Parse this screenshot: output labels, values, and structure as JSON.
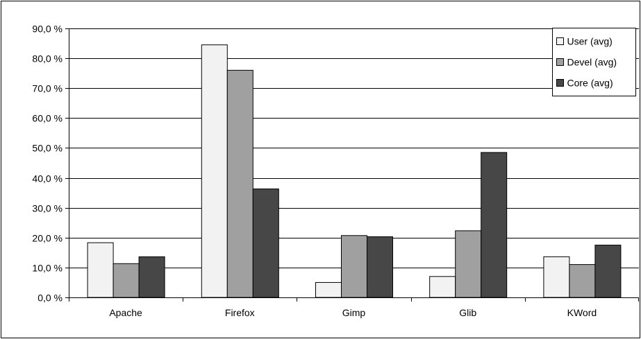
{
  "chart_data": {
    "type": "bar",
    "categories": [
      "Apache",
      "Firefox",
      "Gimp",
      "Glib",
      "KWord"
    ],
    "series": [
      {
        "name": "User (avg)",
        "values": [
          18.3,
          84.5,
          5.0,
          7.0,
          13.6
        ],
        "color": "#f2f2f2"
      },
      {
        "name": "Devel (avg)",
        "values": [
          11.3,
          76.0,
          20.7,
          22.3,
          11.0
        ],
        "color": "#a0a0a0"
      },
      {
        "name": "Core (avg)",
        "values": [
          13.6,
          36.3,
          20.3,
          48.5,
          17.5
        ],
        "color": "#474747"
      }
    ],
    "ylim": [
      0,
      90
    ],
    "yticks": [
      "0,0 %",
      "10,0 %",
      "20,0 %",
      "30,0 %",
      "40,0 %",
      "50,0 %",
      "60,0 %",
      "70,0 %",
      "80,0 %",
      "90,0 %"
    ],
    "grid": true,
    "legend_position": "top-right"
  }
}
